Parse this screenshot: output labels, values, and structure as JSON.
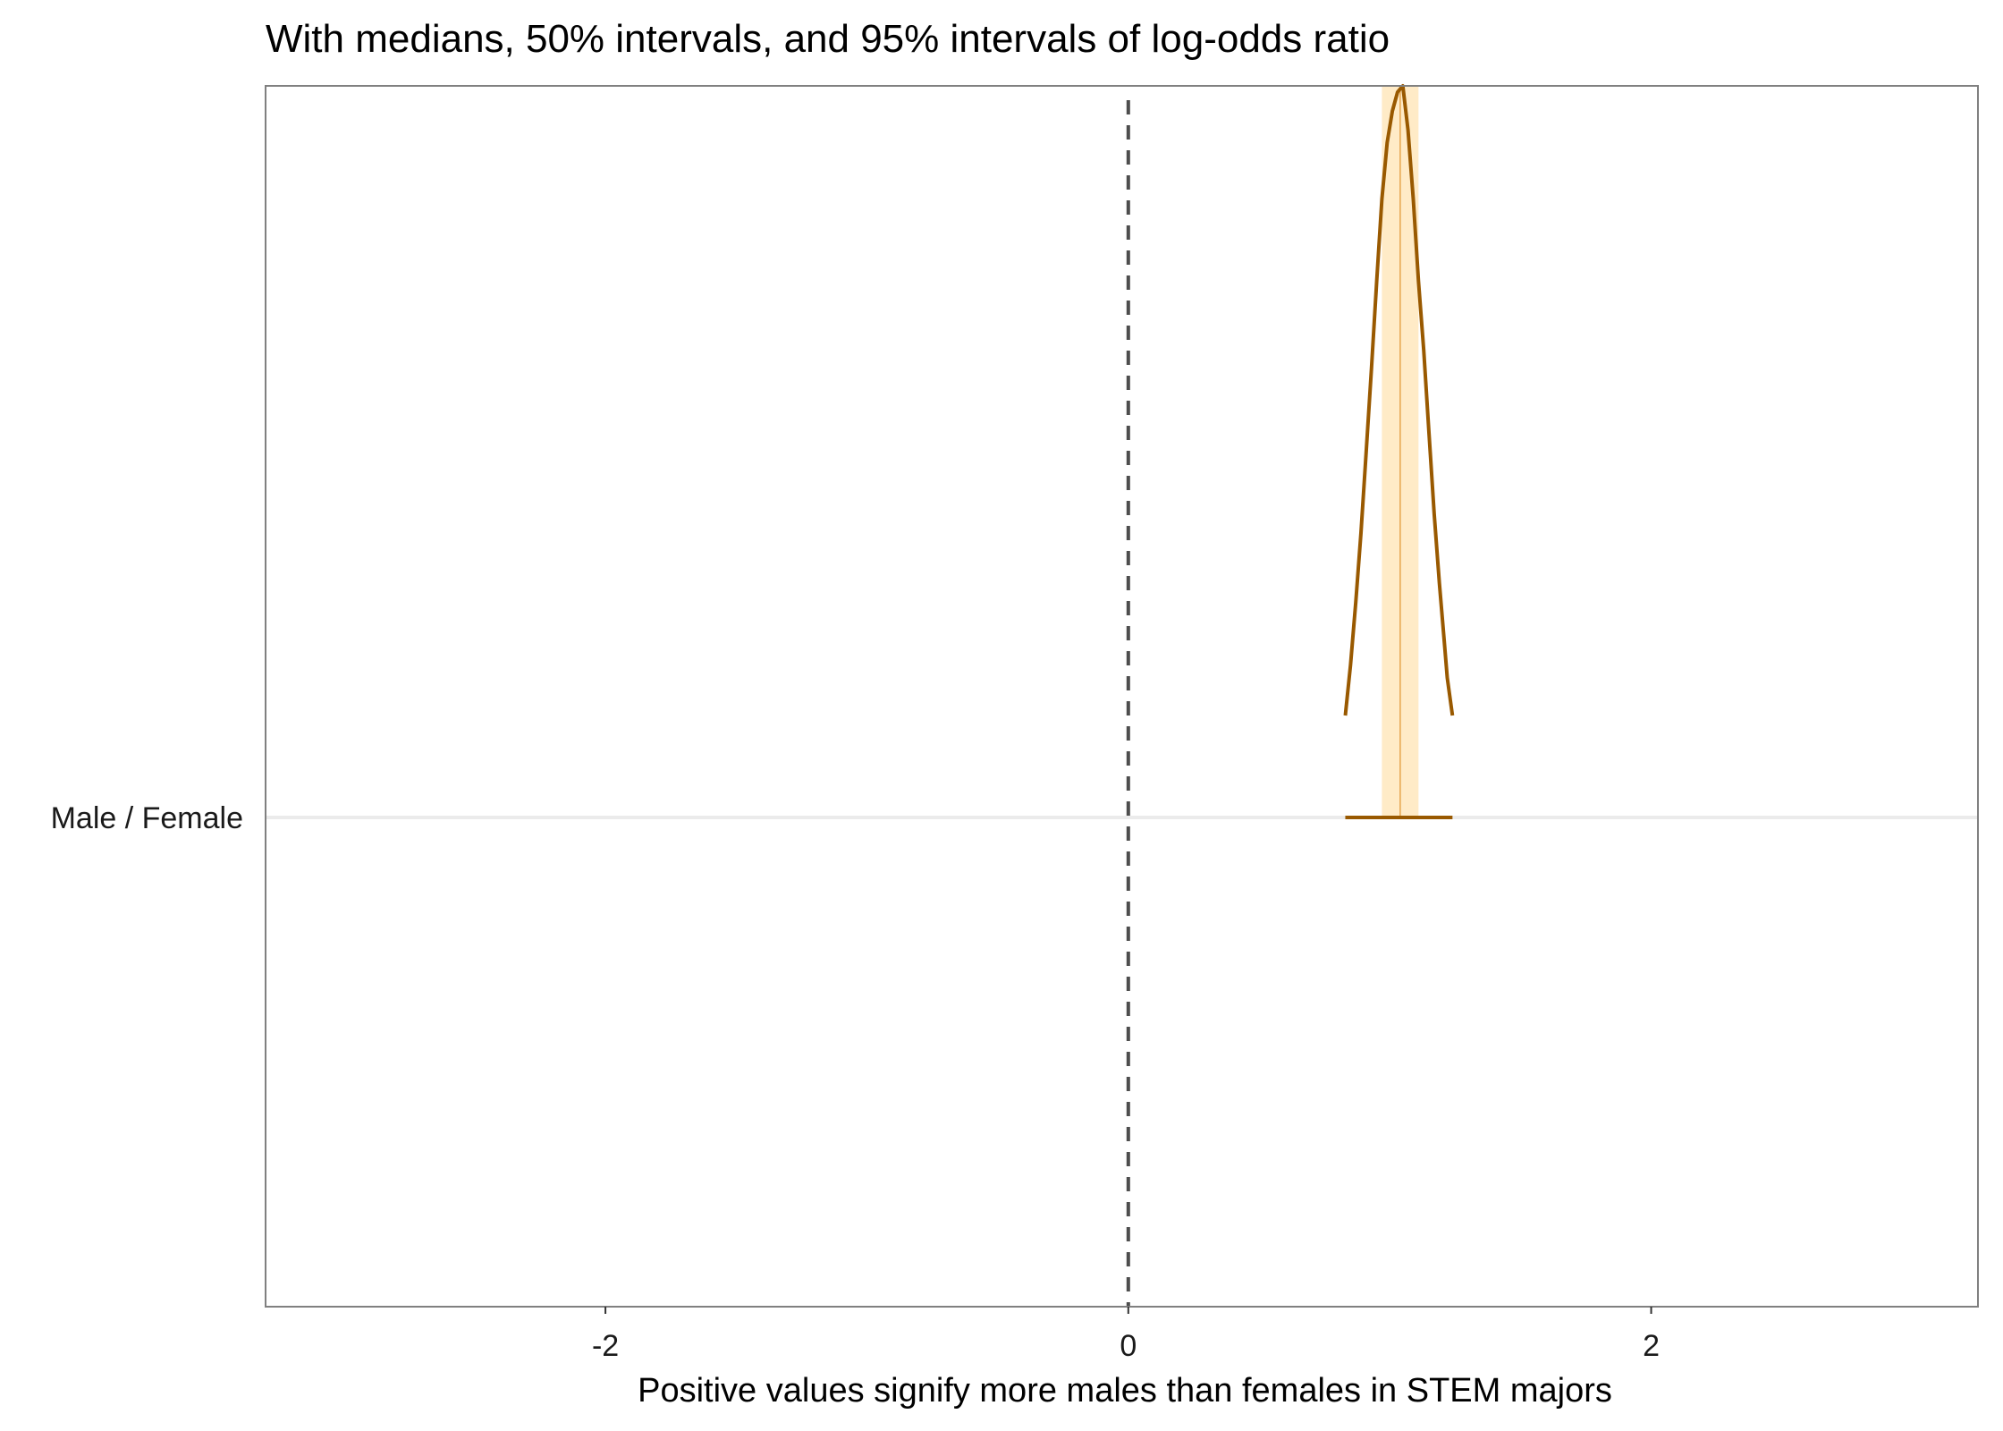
{
  "chart_data": {
    "type": "density-interval",
    "title": "With medians, 50% intervals, and 95% intervals of log-odds ratio",
    "xlabel": "Positive values signify more males than females in STEM majors",
    "ylabel": "",
    "xlim": [
      -3.3,
      3.25
    ],
    "x_ticks": [
      -2,
      0,
      2
    ],
    "x_tick_labels": [
      "-2",
      "0",
      "2"
    ],
    "categories": [
      "Male / Female"
    ],
    "reference_line": {
      "x": 0,
      "style": "dashed"
    },
    "series": [
      {
        "category": "Male / Female",
        "median": 1.04,
        "interval_50": [
          0.97,
          1.11
        ],
        "interval_95": [
          0.83,
          1.24
        ],
        "density_outline": {
          "x": [
            0.83,
            0.85,
            0.87,
            0.89,
            0.91,
            0.93,
            0.95,
            0.97,
            0.99,
            1.01,
            1.03,
            1.05,
            1.07,
            1.09,
            1.11,
            1.13,
            1.15,
            1.17,
            1.19,
            1.21,
            1.22,
            1.24
          ],
          "density": [
            0.0,
            0.08,
            0.18,
            0.29,
            0.42,
            0.55,
            0.69,
            0.82,
            0.91,
            0.96,
            0.99,
            1.0,
            0.93,
            0.82,
            0.69,
            0.58,
            0.45,
            0.32,
            0.21,
            0.11,
            0.06,
            0.0
          ]
        }
      }
    ],
    "colors": {
      "density_line": "#995900",
      "interval_fill": "#ffebc7",
      "median_line": "#e6a54d",
      "reference_line": "#4d4d4d",
      "gridline": "#ebebeb",
      "panel_border": "#808080"
    },
    "grid": "horizontal-only"
  }
}
